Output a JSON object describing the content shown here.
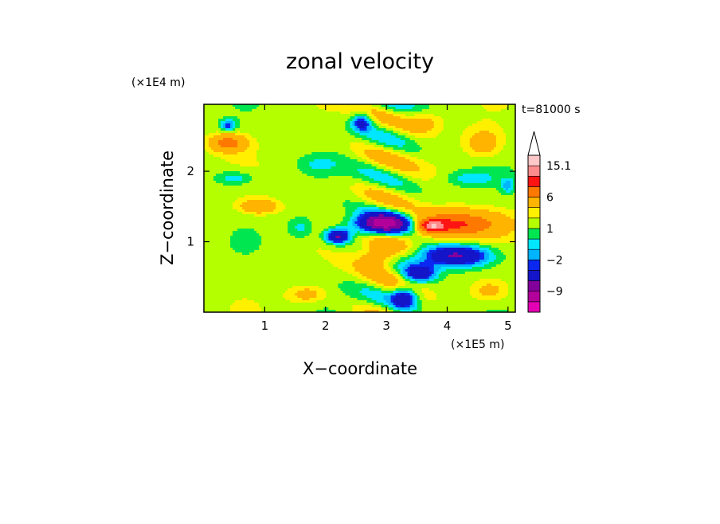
{
  "chart_data": {
    "type": "heatmap",
    "title": "zonal velocity",
    "xlabel": "X−coordinate",
    "ylabel": "Z−coordinate",
    "x_unit": "(×1E5 m)",
    "y_unit": "(×1E4 m)",
    "time_label": "t=81000 s",
    "xlim": [
      0,
      5.12
    ],
    "ylim": [
      0,
      2.95
    ],
    "x_ticks": [
      {
        "value": 1,
        "label": "1"
      },
      {
        "value": 2,
        "label": "2"
      },
      {
        "value": 3,
        "label": "3"
      },
      {
        "value": 4,
        "label": "4"
      },
      {
        "value": 5,
        "label": "5"
      }
    ],
    "y_ticks": [
      {
        "value": 1,
        "label": "1"
      },
      {
        "value": 2,
        "label": "2"
      }
    ],
    "colorbar": {
      "levels": [
        -15,
        -12,
        -9,
        -6,
        -3,
        -2,
        -1,
        0,
        1,
        2,
        3,
        6,
        9,
        12,
        15.1
      ],
      "colors": [
        "#e600b4",
        "#b4009b",
        "#82009b",
        "#1414c8",
        "#0a28f0",
        "#00b4ff",
        "#00e6ff",
        "#00e650",
        "#b4ff00",
        "#fff000",
        "#ffb400",
        "#ff7800",
        "#ff1414",
        "#ff8c8c",
        "#ffc8c8"
      ],
      "labels": [
        {
          "value": -9,
          "label": "−9"
        },
        {
          "value": -2,
          "label": "−2"
        },
        {
          "value": 1,
          "label": "1"
        },
        {
          "value": 6,
          "label": "6"
        },
        {
          "value": 15.1,
          "label": "15.1"
        }
      ],
      "extend": "max"
    },
    "field_features": [
      {
        "x": 0.4,
        "z": 2.4,
        "u": 6,
        "sx": 0.28,
        "sz": 0.12
      },
      {
        "x": 0.4,
        "z": 2.65,
        "u": -4,
        "sx": 0.12,
        "sz": 0.08
      },
      {
        "x": 0.9,
        "z": 1.5,
        "u": 4,
        "sx": 0.3,
        "sz": 0.1
      },
      {
        "x": 0.5,
        "z": 1.9,
        "u": -2.5,
        "sx": 0.3,
        "sz": 0.1
      },
      {
        "x": 1.6,
        "z": 1.2,
        "u": -2,
        "sx": 0.2,
        "sz": 0.15
      },
      {
        "x": 1.9,
        "z": 2.1,
        "u": -1.5,
        "sx": 0.3,
        "sz": 0.1
      },
      {
        "x": 1.7,
        "z": 0.25,
        "u": 2.5,
        "sx": 0.3,
        "sz": 0.12
      },
      {
        "x": 2.95,
        "z": 1.25,
        "u": -12,
        "sx": 0.45,
        "sz": 0.14
      },
      {
        "x": 2.2,
        "z": 1.08,
        "u": -8,
        "sx": 0.2,
        "sz": 0.1
      },
      {
        "x": 4.1,
        "z": 1.25,
        "u": 8,
        "sx": 0.75,
        "sz": 0.18
      },
      {
        "x": 3.75,
        "z": 1.22,
        "u": 9,
        "sx": 0.2,
        "sz": 0.08
      },
      {
        "x": 4.15,
        "z": 0.8,
        "u": -8,
        "sx": 0.55,
        "sz": 0.15
      },
      {
        "x": 3.55,
        "z": 0.55,
        "u": -6,
        "sx": 0.25,
        "sz": 0.12
      },
      {
        "x": 2.9,
        "z": 0.8,
        "u": 5,
        "sx": 0.35,
        "sz": 0.18
      },
      {
        "x": 3.3,
        "z": 0.2,
        "u": -6,
        "sx": 0.2,
        "sz": 0.15
      },
      {
        "x": 2.6,
        "z": 2.7,
        "u": -5,
        "sx": 0.15,
        "sz": 0.12
      },
      {
        "x": 3.6,
        "z": 2.7,
        "u": 2.5,
        "sx": 0.3,
        "sz": 0.15
      },
      {
        "x": 4.4,
        "z": 1.9,
        "u": -2,
        "sx": 0.4,
        "sz": 0.1
      },
      {
        "x": 4.6,
        "z": 2.4,
        "u": 3,
        "sx": 0.3,
        "sz": 0.2
      },
      {
        "x": 4.7,
        "z": 0.3,
        "u": 2.5,
        "sx": 0.3,
        "sz": 0.15
      },
      {
        "x": 5.0,
        "z": 1.8,
        "u": -3,
        "sx": 0.1,
        "sz": 0.1
      }
    ]
  }
}
